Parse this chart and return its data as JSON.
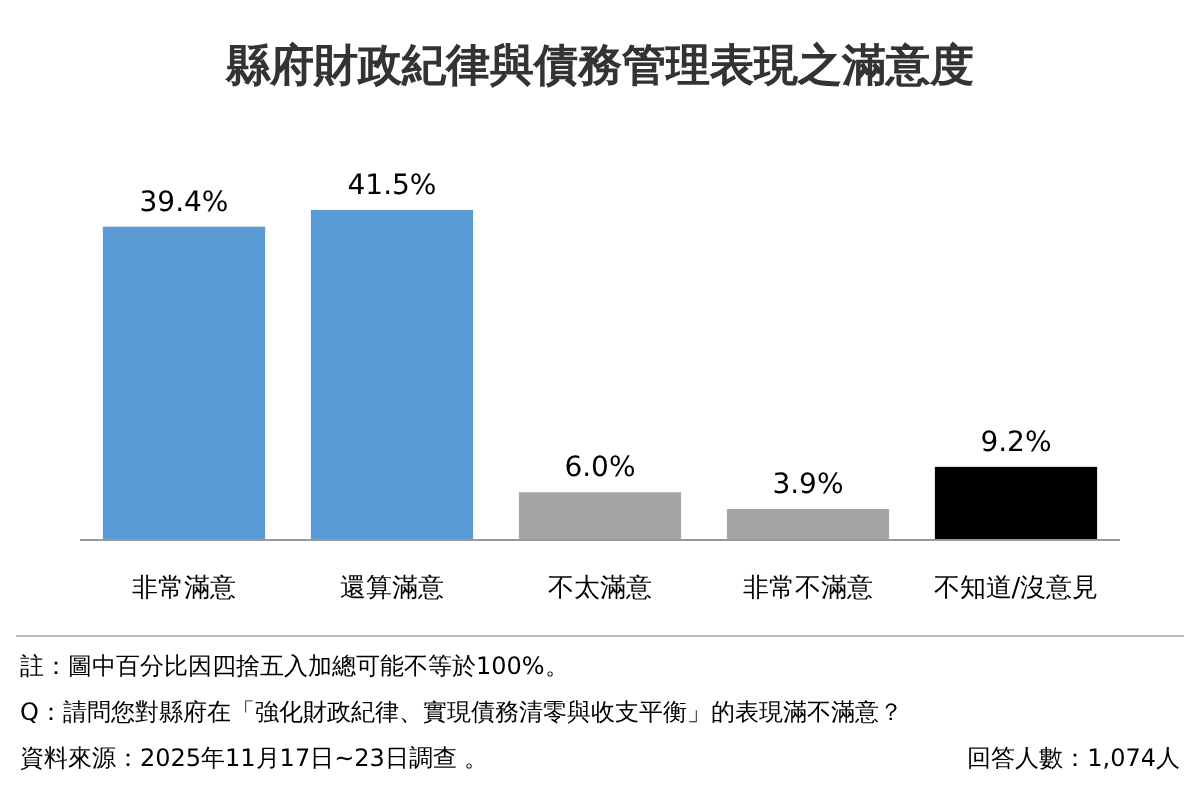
{
  "chart_data": {
    "type": "bar",
    "title": "縣府財政紀律與債務管理表現之滿意度",
    "categories": [
      "非常滿意",
      "還算滿意",
      "不太滿意",
      "非常不滿意",
      "不知道/沒意見"
    ],
    "values": [
      39.4,
      41.5,
      6.0,
      3.9,
      9.2
    ],
    "value_labels": [
      "39.4%",
      "41.5%",
      "6.0%",
      "3.9%",
      "9.2%"
    ],
    "colors": [
      "#5b9bd5",
      "#5b9bd5",
      "#a5a5a5",
      "#a5a5a5",
      "#000000"
    ],
    "annotations": [
      "註：圖中百分比因四捨五入加總可能不等於100%。",
      "Q：請問您對縣府在「強化財政紀律、實現債務清零與收支平衡」的表現滿不滿意？",
      "資料來源：2025年11月17日~23日調查 。",
      "回答人數：1,074人"
    ]
  }
}
